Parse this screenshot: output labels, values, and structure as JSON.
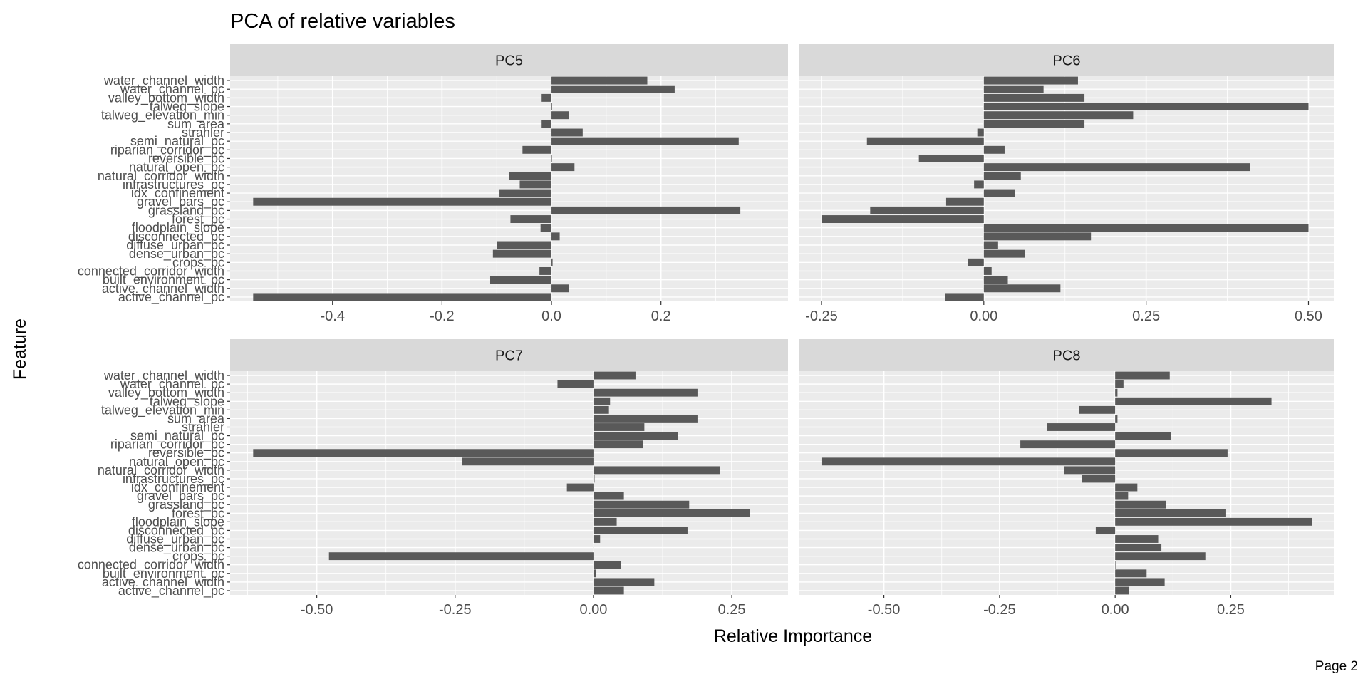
{
  "page_label": "Page 2",
  "chart_data": {
    "type": "bar",
    "orientation": "horizontal",
    "title": "PCA of relative variables",
    "xlabel": "Relative Importance",
    "ylabel": "Feature",
    "grid": true,
    "colors": {
      "bar": "#595959",
      "panel": "#ebebeb",
      "strip": "#d9d9d9",
      "grid": "#ffffff"
    },
    "categories": [
      "water_channel_width",
      "water_channel_pc",
      "valley_bottom_width",
      "talweg_slope",
      "talweg_elevation_min",
      "sum_area",
      "strahler",
      "semi_natural_pc",
      "riparian_corridor_pc",
      "reversible_pc",
      "natural_open_pc",
      "natural_corridor_width",
      "infrastructures_pc",
      "idx_confinement",
      "gravel_bars_pc",
      "grassland_pc",
      "forest_pc",
      "floodplain_slope",
      "disconnected_pc",
      "diffuse_urban_pc",
      "dense_urban_pc",
      "crops_pc",
      "connected_corridor_width",
      "built_environment_pc",
      "active_channel_width",
      "active_channel_pc"
    ],
    "panels": [
      {
        "name": "PC5",
        "xlim": [
          -0.545,
          0.39
        ],
        "ticks": [
          {
            "v": -0.4,
            "label": "-0.4"
          },
          {
            "v": -0.2,
            "label": "-0.2"
          },
          {
            "v": 0.0,
            "label": "0.0"
          },
          {
            "v": 0.2,
            "label": "0.2"
          }
        ],
        "values": [
          0.175,
          0.225,
          -0.018,
          0.001,
          0.032,
          -0.018,
          0.057,
          0.342,
          -0.053,
          0.0,
          0.042,
          -0.078,
          -0.058,
          -0.095,
          -0.545,
          0.345,
          -0.075,
          -0.02,
          0.015,
          -0.1,
          -0.107,
          0.002,
          -0.022,
          -0.112,
          0.032,
          -0.545
        ]
      },
      {
        "name": "PC6",
        "xlim": [
          -0.25,
          0.505
        ],
        "ticks": [
          {
            "v": -0.25,
            "label": "-0.25"
          },
          {
            "v": 0.0,
            "label": "0.00"
          },
          {
            "v": 0.25,
            "label": "0.25"
          },
          {
            "v": 0.5,
            "label": "0.50"
          }
        ],
        "values": [
          0.145,
          0.092,
          0.155,
          0.5,
          0.23,
          0.155,
          -0.01,
          -0.18,
          0.032,
          -0.1,
          0.41,
          0.057,
          -0.015,
          0.048,
          -0.058,
          -0.175,
          -0.25,
          0.5,
          0.165,
          0.022,
          0.063,
          -0.025,
          0.012,
          0.037,
          0.118,
          -0.06
        ]
      },
      {
        "name": "PC7",
        "xlim": [
          -0.615,
          0.31
        ],
        "ticks": [
          {
            "v": -0.5,
            "label": "-0.50"
          },
          {
            "v": -0.25,
            "label": "-0.25"
          },
          {
            "v": 0.0,
            "label": "0.00"
          },
          {
            "v": 0.25,
            "label": "0.25"
          }
        ],
        "values": [
          0.076,
          -0.065,
          0.188,
          0.03,
          0.028,
          0.188,
          0.092,
          0.153,
          0.09,
          -0.615,
          -0.237,
          0.228,
          0.002,
          -0.048,
          0.055,
          0.173,
          0.283,
          0.042,
          0.17,
          0.012,
          0.0,
          -0.478,
          0.05,
          0.005,
          0.11,
          0.055
        ]
      },
      {
        "name": "PC8",
        "xlim": [
          -0.635,
          0.425
        ],
        "ticks": [
          {
            "v": -0.5,
            "label": "-0.50"
          },
          {
            "v": -0.25,
            "label": "-0.25"
          },
          {
            "v": 0.0,
            "label": "0.00"
          },
          {
            "v": 0.25,
            "label": "0.25"
          }
        ],
        "values": [
          0.118,
          0.018,
          0.005,
          0.338,
          -0.078,
          0.005,
          -0.148,
          0.12,
          -0.205,
          0.243,
          -0.635,
          -0.11,
          -0.072,
          0.048,
          0.028,
          0.11,
          0.24,
          0.425,
          -0.042,
          0.093,
          0.1,
          0.195,
          0.0,
          0.068,
          0.107,
          0.03
        ]
      }
    ]
  }
}
